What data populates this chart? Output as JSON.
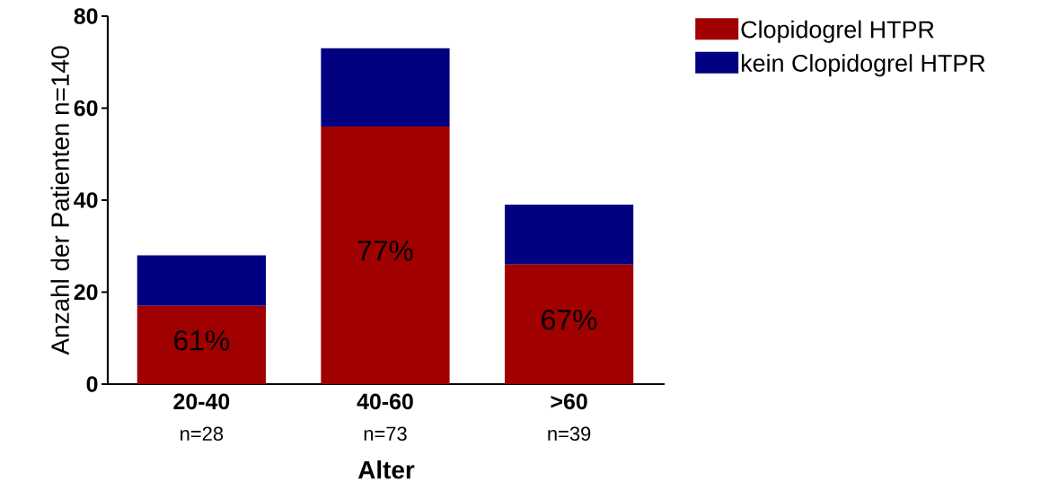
{
  "chart_data": {
    "type": "bar",
    "stacked": true,
    "xlabel": "Alter",
    "ylabel": "Anzahl der Patienten n=140",
    "categories": [
      "20-40",
      "40-60",
      ">60"
    ],
    "series": [
      {
        "name": "Clopidogrel HTPR",
        "color": "#a00000",
        "values": [
          17,
          56,
          26
        ]
      },
      {
        "name": "kein Clopidogrel HTPR",
        "color": "#000080",
        "values": [
          11,
          17,
          13
        ]
      }
    ],
    "annotations": [
      "61%",
      "77%",
      "67%"
    ],
    "totals": [
      "n=28",
      "n=73",
      "n=39"
    ],
    "ylim": [
      0,
      80
    ],
    "yticks": [
      0,
      20,
      40,
      60,
      80
    ],
    "grid": false,
    "legend": "right"
  }
}
